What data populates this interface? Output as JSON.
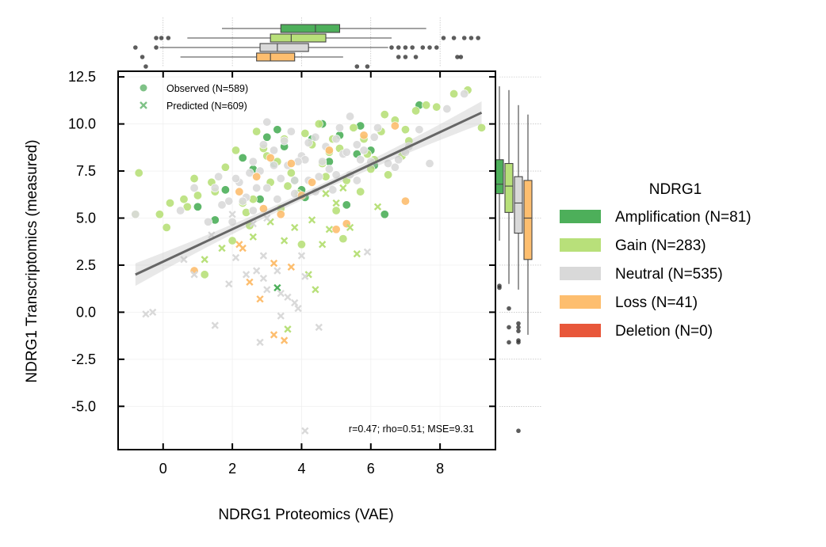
{
  "chart_data": {
    "type": "scatter",
    "xlabel": "NDRG1 Proteomics (VAE)",
    "ylabel": "NDRG1 Transcriptomics (measured)",
    "xlim": [
      -1.3,
      9.6
    ],
    "ylim": [
      -7.3,
      12.8
    ],
    "xticks": [
      0,
      2,
      4,
      6,
      8
    ],
    "yticks": [
      -5.0,
      -2.5,
      0.0,
      2.5,
      5.0,
      7.5,
      10.0,
      12.5
    ],
    "grid": true,
    "annotation": "r=0.47; rho=0.51; MSE=9.31",
    "marker_legend": {
      "placement": "top-left",
      "entries": [
        {
          "label": "Observed (N=589)",
          "marker": "circle"
        },
        {
          "label": "Predicted (N=609)",
          "marker": "x"
        }
      ]
    },
    "legend": {
      "title": "NDRG1",
      "placement": "right",
      "entries": [
        {
          "label": "Amplification (N=81)",
          "color": "#4daf5a"
        },
        {
          "label": "Gain (N=283)",
          "color": "#b8e07a"
        },
        {
          "label": "Neutral (N=535)",
          "color": "#d9d9d9"
        },
        {
          "label": "Loss (N=41)",
          "color": "#fdbe6f"
        },
        {
          "label": "Deletion (N=0)",
          "color": "#e8573a"
        }
      ]
    },
    "regression": {
      "x": [
        -0.8,
        9.2
      ],
      "y": [
        2.0,
        10.6
      ],
      "color": "#666666"
    },
    "x_boxplots": [
      {
        "group": "Amplification",
        "whisker_low": 1.7,
        "q1": 3.4,
        "median": 4.4,
        "q3": 5.1,
        "whisker_high": 7.6,
        "outliers": [
          -0.2,
          -0.05,
          0.15,
          8.1,
          8.4,
          8.7,
          8.9,
          9.1
        ]
      },
      {
        "group": "Gain",
        "whisker_low": 0.7,
        "q1": 3.1,
        "median": 3.7,
        "q3": 4.7,
        "whisker_high": 6.6,
        "outliers": [
          -0.8,
          -0.2,
          6.6,
          6.8,
          7.0,
          7.2,
          7.5,
          7.7,
          7.9
        ]
      },
      {
        "group": "Neutral",
        "whisker_low": -0.1,
        "q1": 2.8,
        "median": 3.3,
        "q3": 4.2,
        "whisker_high": 6.5,
        "outliers": [
          -0.6,
          6.8,
          7.0,
          7.3,
          8.5,
          8.6
        ]
      },
      {
        "group": "Loss",
        "whisker_low": 0.5,
        "q1": 2.7,
        "median": 3.1,
        "q3": 3.8,
        "whisker_high": 5.2,
        "outliers": [
          -0.5,
          5.6,
          5.9
        ]
      }
    ],
    "y_boxplots": [
      {
        "group": "Amplification",
        "whisker_low": 3.8,
        "q1": 6.3,
        "median": 6.8,
        "q3": 8.1,
        "whisker_high": 12.0,
        "outliers": [
          1.4,
          1.3
        ]
      },
      {
        "group": "Gain",
        "whisker_low": 1.5,
        "q1": 5.3,
        "median": 6.7,
        "q3": 7.9,
        "whisker_high": 11.8,
        "outliers": [
          0.2,
          -0.8,
          -1.6
        ]
      },
      {
        "group": "Neutral",
        "whisker_low": 1.2,
        "q1": 4.2,
        "median": 5.8,
        "q3": 7.2,
        "whisker_high": 11.0,
        "outliers": [
          -0.6,
          -0.8,
          -1.0,
          -1.5,
          -1.6,
          -6.3
        ]
      },
      {
        "group": "Loss",
        "whisker_low": -1.2,
        "q1": 2.8,
        "median": 5.0,
        "q3": 7.0,
        "whisker_high": 10.5,
        "outliers": []
      }
    ],
    "series": [
      {
        "name": "Amplification (N=81)",
        "marker": "circle",
        "x": [
          1.0,
          1.5,
          2.3,
          3.0,
          3.5,
          4.0,
          4.6,
          5.1,
          5.6,
          6.1,
          6.4,
          7.4,
          1.8,
          2.6,
          3.3,
          4.3,
          5.3,
          6.0,
          2.8,
          3.8,
          4.8,
          5.7,
          3.2,
          4.1
        ],
        "y": [
          5.6,
          4.9,
          8.2,
          9.3,
          8.8,
          6.5,
          10.0,
          9.4,
          8.4,
          7.8,
          5.2,
          11.0,
          6.5,
          7.6,
          9.7,
          9.2,
          5.7,
          8.6,
          6.0,
          7.0,
          8.0,
          9.9,
          7.9,
          6.1
        ]
      },
      {
        "name": "Gain (N=283)",
        "marker": "circle",
        "x": [
          -0.8,
          -0.7,
          -0.1,
          0.1,
          0.2,
          0.7,
          0.9,
          1.2,
          1.5,
          1.8,
          2.1,
          2.3,
          2.5,
          2.7,
          2.9,
          3.1,
          3.3,
          3.5,
          3.7,
          3.9,
          4.1,
          4.3,
          4.5,
          4.7,
          4.9,
          5.1,
          5.3,
          5.5,
          5.7,
          5.9,
          6.1,
          6.3,
          6.5,
          6.7,
          6.9,
          7.1,
          7.3,
          7.6,
          7.9,
          8.4,
          8.8,
          9.2,
          1.4,
          2.0,
          2.6,
          3.4,
          4.0,
          4.6,
          5.2,
          5.8,
          6.4,
          7.0,
          1.0,
          2.4,
          3.6,
          4.8,
          6.0,
          0.6,
          3.0,
          5.0
        ],
        "y": [
          5.2,
          7.4,
          5.2,
          4.5,
          5.8,
          5.6,
          7.1,
          2.0,
          6.4,
          7.7,
          8.6,
          5.8,
          4.6,
          9.6,
          8.7,
          6.9,
          8.0,
          9.2,
          7.4,
          6.3,
          9.5,
          8.9,
          10.0,
          7.2,
          9.2,
          8.7,
          7.0,
          9.8,
          6.4,
          8.4,
          8.1,
          9.6,
          7.3,
          10.2,
          8.3,
          9.1,
          10.7,
          11.0,
          10.9,
          11.6,
          11.8,
          9.8,
          6.9,
          3.8,
          6.0,
          5.5,
          3.6,
          7.9,
          3.9,
          9.2,
          10.5,
          9.7,
          6.2,
          5.3,
          6.7,
          8.5,
          7.6,
          6.0,
          8.3,
          5.4
        ]
      },
      {
        "name": "Neutral (N=535)",
        "marker": "circle",
        "x": [
          -0.8,
          0.5,
          0.9,
          1.3,
          1.6,
          1.9,
          2.2,
          2.4,
          2.6,
          2.8,
          3.0,
          3.2,
          3.4,
          3.6,
          3.8,
          4.0,
          4.2,
          4.4,
          4.6,
          4.8,
          5.0,
          5.2,
          5.4,
          5.6,
          5.8,
          6.0,
          6.2,
          6.5,
          6.8,
          7.1,
          7.4,
          7.7,
          8.2,
          8.7,
          1.7,
          2.1,
          2.5,
          2.9,
          3.3,
          3.7,
          4.1,
          4.5,
          4.9,
          5.3,
          5.7,
          6.1,
          2.0,
          2.6,
          3.2,
          3.8,
          4.4,
          5.0,
          5.6,
          2.3,
          3.5,
          4.7,
          3.0,
          4.2,
          5.4,
          1.5,
          6.7,
          7.0,
          2.7,
          3.9,
          5.1
        ],
        "y": [
          5.2,
          5.4,
          6.6,
          4.8,
          7.2,
          5.9,
          6.9,
          6.1,
          8.0,
          7.5,
          6.6,
          8.6,
          7.1,
          7.8,
          6.3,
          8.3,
          7.0,
          6.4,
          8.0,
          7.6,
          9.2,
          8.4,
          7.3,
          8.9,
          8.6,
          8.0,
          9.8,
          7.9,
          8.1,
          8.8,
          9.7,
          7.9,
          10.8,
          11.6,
          5.7,
          7.1,
          7.4,
          8.9,
          6.0,
          9.6,
          8.1,
          7.2,
          6.5,
          8.5,
          8.1,
          9.3,
          4.8,
          5.4,
          7.8,
          7.0,
          9.3,
          7.3,
          7.0,
          5.9,
          9.1,
          8.8,
          10.1,
          9.0,
          10.4,
          6.6,
          7.7,
          8.5,
          6.6,
          8.0,
          9.8
        ]
      },
      {
        "name": "Loss (N=41)",
        "marker": "circle",
        "x": [
          0.9,
          2.2,
          2.7,
          3.1,
          3.7,
          4.3,
          4.8,
          5.3,
          5.8,
          6.7,
          7.0,
          2.9,
          4.0,
          5.0,
          3.4
        ],
        "y": [
          2.2,
          6.4,
          7.2,
          8.2,
          7.9,
          6.9,
          8.6,
          4.7,
          9.4,
          9.9,
          5.9,
          5.5,
          6.2,
          4.4,
          5.2
        ]
      },
      {
        "name": "Predicted",
        "marker": "x",
        "x": [
          -0.5,
          -0.3,
          0.6,
          0.9,
          1.2,
          1.5,
          1.7,
          1.9,
          2.1,
          2.2,
          2.4,
          2.5,
          2.6,
          2.7,
          2.8,
          2.9,
          3.0,
          3.1,
          3.2,
          3.3,
          3.4,
          3.5,
          3.6,
          3.7,
          3.8,
          3.9,
          4.0,
          4.1,
          4.2,
          4.3,
          4.4,
          4.5,
          4.6,
          4.8,
          5.0,
          5.2,
          5.4,
          5.6,
          5.9,
          6.2,
          1.4,
          2.0,
          2.3,
          2.6,
          2.9,
          3.2,
          3.5,
          3.8,
          4.1,
          4.7,
          3.0,
          3.3,
          3.6,
          2.8,
          3.4
        ],
        "y": [
          -0.1,
          0.0,
          2.8,
          2.0,
          2.8,
          -0.7,
          3.4,
          1.5,
          2.9,
          3.6,
          2.0,
          1.6,
          4.0,
          2.2,
          0.7,
          3.0,
          1.2,
          4.8,
          2.6,
          1.3,
          -0.2,
          3.8,
          -0.9,
          2.4,
          4.5,
          0.2,
          3.0,
          -6.3,
          2.0,
          4.9,
          1.2,
          -0.8,
          3.6,
          4.4,
          5.8,
          6.6,
          4.5,
          3.1,
          3.2,
          5.6,
          4.1,
          5.2,
          3.4,
          4.7,
          1.8,
          -1.2,
          -1.5,
          0.5,
          1.9,
          6.3,
          5.0,
          2.2,
          0.8,
          -1.6,
          1.0
        ],
        "colors": [
          "#d9d9d9",
          "#d9d9d9",
          "#d9d9d9",
          "#d9d9d9",
          "#b8e07a",
          "#d9d9d9",
          "#b8e07a",
          "#d9d9d9",
          "#d9d9d9",
          "#fdbe6f",
          "#d9d9d9",
          "#fdbe6f",
          "#b8e07a",
          "#d9d9d9",
          "#fdbe6f",
          "#d9d9d9",
          "#d9d9d9",
          "#b8e07a",
          "#fdbe6f",
          "#4daf5a",
          "#d9d9d9",
          "#b8e07a",
          "#b8e07a",
          "#fdbe6f",
          "#b8e07a",
          "#d9d9d9",
          "#d9d9d9",
          "#d9d9d9",
          "#b8e07a",
          "#b8e07a",
          "#b8e07a",
          "#d9d9d9",
          "#b8e07a",
          "#b8e07a",
          "#b8e07a",
          "#b8e07a",
          "#b8e07a",
          "#b8e07a",
          "#d9d9d9",
          "#b8e07a",
          "#d9d9d9",
          "#d9d9d9",
          "#fdbe6f",
          "#d9d9d9",
          "#d9d9d9",
          "#fdbe6f",
          "#fdbe6f",
          "#d9d9d9",
          "#d9d9d9",
          "#b8e07a",
          "#d9d9d9",
          "#d9d9d9",
          "#d9d9d9",
          "#d9d9d9",
          "#d9d9d9"
        ]
      }
    ]
  }
}
